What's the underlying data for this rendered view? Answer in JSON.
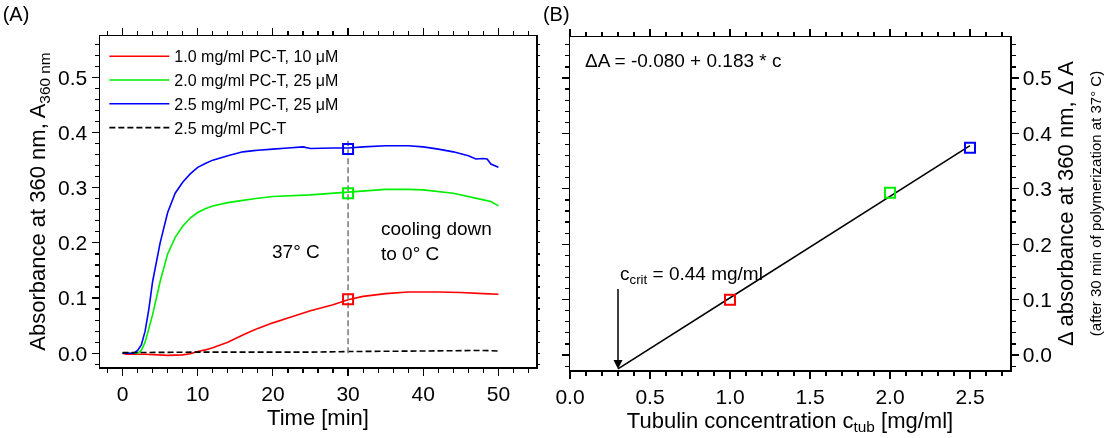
{
  "chart_data": [
    {
      "type": "line",
      "title": "(A)",
      "xlabel": "Time [min]",
      "ylabel": "Absorbance at 360 nm, A$_{360 nm}$",
      "xlim": [
        -3,
        55
      ],
      "xticks": [
        0,
        10,
        20,
        30,
        40,
        50
      ],
      "ylim": [
        -0.025,
        0.575
      ],
      "yticks": [
        {
          "value": 0,
          "label": "0.0"
        },
        0.1,
        0.2,
        0.3,
        0.4,
        0.5
      ],
      "grid": false,
      "legend": "top left",
      "series": [
        {
          "name": "1.0 mg/ml PC-T, 10 μM",
          "color": "#ff0000",
          "x": [
            0,
            0.5,
            3,
            6,
            8,
            9,
            10,
            11,
            12,
            14,
            16,
            18,
            20,
            22,
            25,
            28,
            30,
            32,
            35,
            38,
            40,
            42,
            45,
            48,
            50
          ],
          "values": [
            0,
            -0.002,
            -0.002,
            -0.004,
            -0.003,
            -0.001,
            0.003,
            0.006,
            0.01,
            0.02,
            0.033,
            0.045,
            0.055,
            0.064,
            0.077,
            0.088,
            0.097,
            0.103,
            0.108,
            0.111,
            0.111,
            0.111,
            0.11,
            0.108,
            0.107
          ]
        },
        {
          "name": "2.0 mg/ml PC-T, 25 μM",
          "color": "#00ee00",
          "x": [
            0,
            2,
            2.5,
            3,
            4,
            5,
            6,
            7,
            8,
            9,
            10,
            11,
            12,
            14,
            16,
            18,
            20,
            25,
            30,
            35,
            38,
            40,
            44,
            48,
            49,
            50
          ],
          "values": [
            0,
            0,
            0.005,
            0.02,
            0.07,
            0.13,
            0.18,
            0.21,
            0.23,
            0.245,
            0.255,
            0.262,
            0.267,
            0.273,
            0.277,
            0.281,
            0.284,
            0.287,
            0.292,
            0.297,
            0.297,
            0.296,
            0.29,
            0.278,
            0.275,
            0.267
          ]
        },
        {
          "name": "2.5 mg/ml PC-T, 25 μM",
          "color": "#0000ff",
          "x": [
            0,
            1.5,
            2,
            2.5,
            3,
            3.5,
            4,
            5,
            6,
            7,
            8,
            9,
            10,
            11,
            12,
            14,
            16,
            18,
            20,
            22,
            24,
            25,
            28,
            30,
            32,
            35,
            38,
            40,
            42,
            44,
            46,
            47,
            48,
            48.5,
            49,
            50
          ],
          "values": [
            0,
            0,
            0.005,
            0.015,
            0.04,
            0.08,
            0.13,
            0.2,
            0.255,
            0.29,
            0.31,
            0.325,
            0.337,
            0.344,
            0.35,
            0.358,
            0.365,
            0.368,
            0.37,
            0.372,
            0.374,
            0.371,
            0.372,
            0.372,
            0.374,
            0.376,
            0.376,
            0.374,
            0.37,
            0.365,
            0.358,
            0.352,
            0.353,
            0.352,
            0.343,
            0.337
          ]
        },
        {
          "name": "2.5 mg/ml PC-T",
          "color": "#000000",
          "line_style": "dashed",
          "x": [
            0,
            10,
            20,
            25,
            30,
            40,
            48,
            50
          ],
          "values": [
            0.001,
            0.002,
            0.002,
            0.002,
            0.003,
            0.004,
            0.005,
            0.004
          ]
        },
        {
          "color": "#808080",
          "line_style": "dashed",
          "x": [
            30,
            30
          ],
          "values": [
            0.0,
            0.385
          ]
        },
        {
          "type": "scatter",
          "marker": "square",
          "x": [
            30,
            30,
            30
          ],
          "values": [
            0.37,
            0.29,
            0.098
          ],
          "colors": [
            "#0000ff",
            "#00ee00",
            "#ff0000"
          ]
        }
      ],
      "annotations": [
        "37° C",
        "cooling down\nto 0° C"
      ]
    },
    {
      "type": "scatter",
      "title": "(B)",
      "xlabel": "Tubulin concentration c$_{tub}$ [mg/ml]",
      "ylabel": "Δ absorbance at 360 nm, Δ A\n(after 30 min of polymerization at 37° C)",
      "xlim": [
        0,
        2.75
      ],
      "xticks": [
        {
          "value": 0,
          "label": "0.0"
        },
        0.5,
        {
          "value": 1,
          "label": "1.0"
        },
        1.5,
        {
          "value": 2,
          "label": "2.0"
        },
        2.5
      ],
      "ylim": [
        -0.027,
        0.574
      ],
      "yticks": [
        {
          "value": 0,
          "label": "0.0"
        },
        0.1,
        0.2,
        0.3,
        0.4,
        0.5
      ],
      "grid": false,
      "legend": false,
      "series": [
        {
          "type": "line",
          "color": "#000000",
          "x": [
            0.3,
            2.5
          ],
          "values": [
            -0.025,
            0.378
          ]
        },
        {
          "type": "scatter",
          "marker": "square",
          "x": [
            1.0,
            2.0,
            2.5
          ],
          "values": [
            0.1,
            0.293,
            0.374
          ],
          "colors": [
            "#ff0000",
            "#00ee00",
            "#0000ff"
          ]
        }
      ],
      "annotations": [
        "ΔA = -0.080 + 0.183 * c",
        {
          "text": "c$_{crit}$ = 0.44 mg/ml",
          "x": 0.3,
          "y": -0.025
        }
      ]
    }
  ]
}
